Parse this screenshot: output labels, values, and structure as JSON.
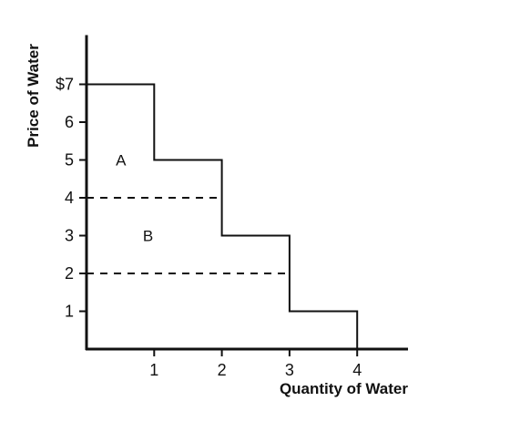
{
  "chart_data": {
    "type": "line",
    "xlabel": "Quantity of Water",
    "ylabel": "Price of Water",
    "xlim": [
      0,
      4.7
    ],
    "ylim": [
      0,
      8.3
    ],
    "x_ticks": [
      "1",
      "2",
      "3",
      "4"
    ],
    "y_ticks": [
      "1",
      "2",
      "3",
      "4",
      "5",
      "6",
      "$7"
    ],
    "series": [
      {
        "style": "step",
        "points": [
          [
            0,
            7
          ],
          [
            1,
            7
          ],
          [
            1,
            5
          ],
          [
            2,
            5
          ],
          [
            2,
            3
          ],
          [
            3,
            3
          ],
          [
            3,
            1
          ],
          [
            4,
            1
          ],
          [
            4,
            0
          ]
        ]
      }
    ],
    "reference_lines": [
      {
        "y": 4,
        "x_from": 0,
        "x_to": 2,
        "style": "dashed"
      },
      {
        "y": 2,
        "x_from": 0,
        "x_to": 3,
        "style": "dashed"
      }
    ],
    "annotations": [
      {
        "text": "A",
        "x": 0.5,
        "y": 5
      },
      {
        "text": "B",
        "x": 0.9,
        "y": 3
      }
    ],
    "grid": false,
    "legend": "none"
  }
}
